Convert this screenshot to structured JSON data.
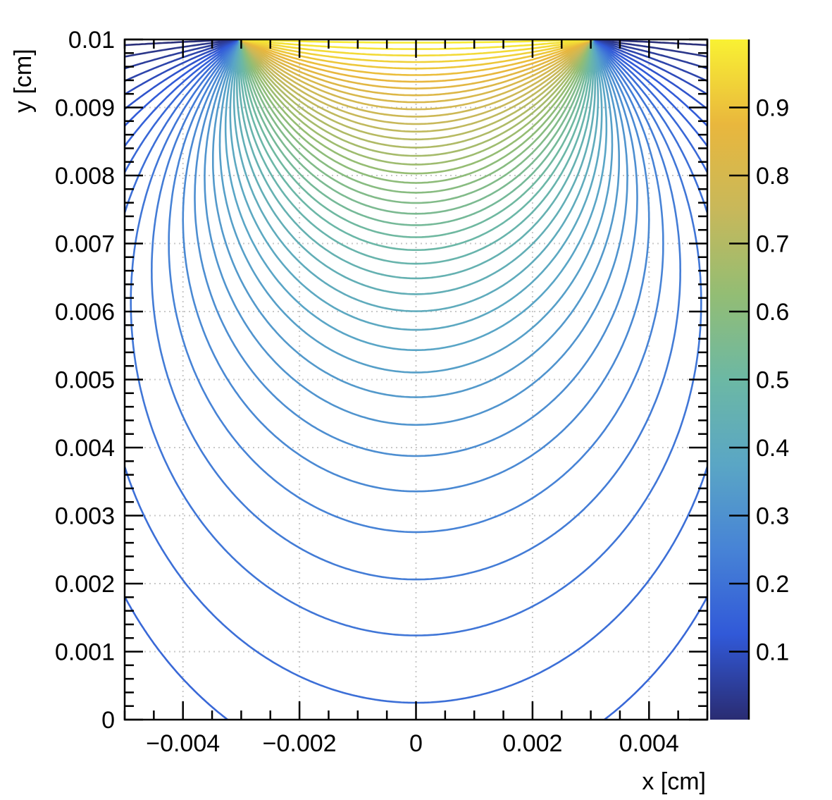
{
  "chart_data": {
    "type": "contour",
    "title": "",
    "description_variable": "weighting potential",
    "xlabel": "x [cm]",
    "ylabel": "y [cm]",
    "xlim": [
      -0.005,
      0.005
    ],
    "ylim": [
      0,
      0.01
    ],
    "x_ticks": [
      -0.004,
      -0.002,
      0,
      0.002,
      0.004
    ],
    "x_tick_labels": [
      "−0.004",
      "−0.002",
      "0",
      "0.002",
      "0.004"
    ],
    "y_ticks": [
      0,
      0.001,
      0.002,
      0.003,
      0.004,
      0.005,
      0.006,
      0.007,
      0.008,
      0.009,
      0.01
    ],
    "y_tick_labels": [
      "0",
      "0.001",
      "0.002",
      "0.003",
      "0.004",
      "0.005",
      "0.006",
      "0.007",
      "0.008",
      "0.009",
      "0.01"
    ],
    "grid": true,
    "colorbar": {
      "range": [
        0,
        1
      ],
      "ticks": [
        0.1,
        0.2,
        0.3,
        0.4,
        0.5,
        0.6,
        0.7,
        0.8,
        0.9
      ],
      "tick_labels": [
        "0.1",
        "0.2",
        "0.3",
        "0.4",
        "0.5",
        "0.6",
        "0.7",
        "0.8",
        "0.9"
      ],
      "palette": [
        "#2a2c72",
        "#3159d8",
        "#4783d6",
        "#5aa6c5",
        "#6cb8a4",
        "#93bd74",
        "#c8b85a",
        "#e9b73d",
        "#f9f133"
      ]
    },
    "electrode": {
      "x_min": -0.003,
      "x_max": 0.003,
      "y": 0.01
    },
    "contour_levels": {
      "start": 0.01,
      "step": 0.02,
      "end": 0.99,
      "count": 50
    }
  }
}
